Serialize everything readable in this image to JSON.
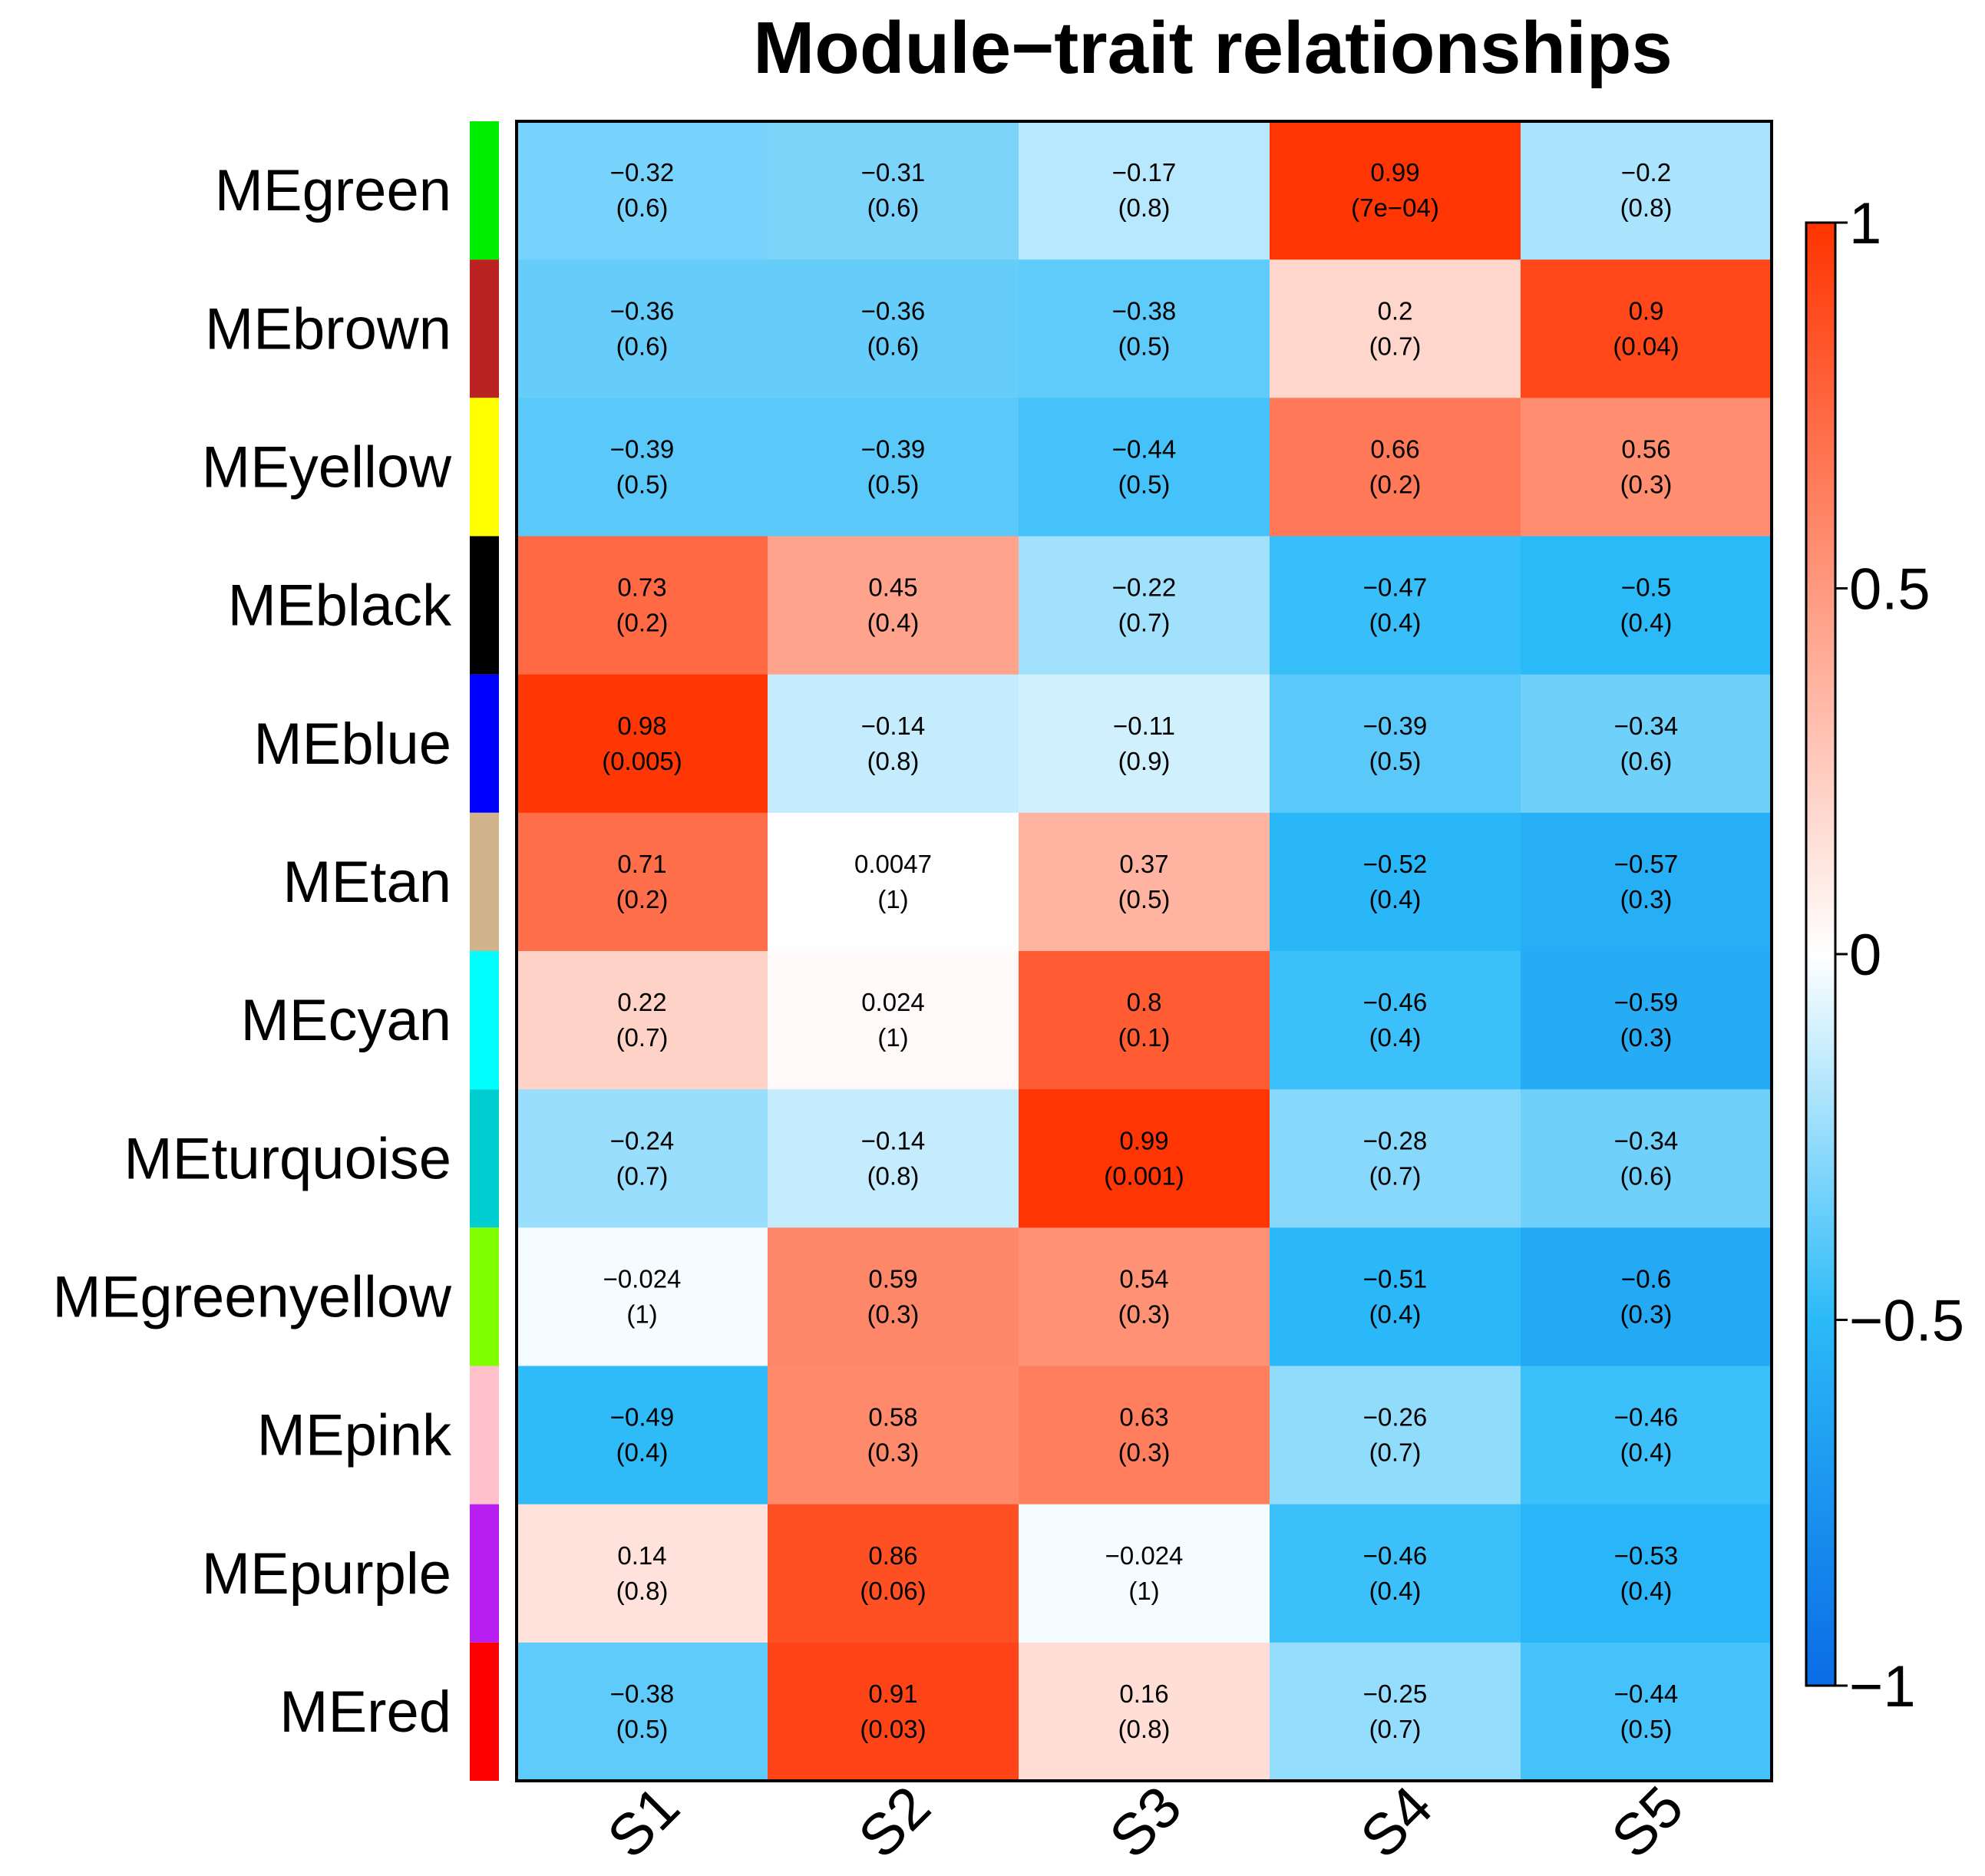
{
  "title": "Module−trait relationships",
  "chart_data": {
    "type": "heatmap",
    "title": "Module−trait relationships",
    "rows": [
      "MEgreen",
      "MEbrown",
      "MEyellow",
      "MEblack",
      "MEblue",
      "MEtan",
      "MEcyan",
      "MEturquoise",
      "MEgreenyellow",
      "MEpink",
      "MEpurple",
      "MEred"
    ],
    "row_colors": [
      "#00ee00",
      "#bb2222",
      "#ffff00",
      "#000000",
      "#0000ff",
      "#d2b48c",
      "#00ffff",
      "#00ced1",
      "#80ff00",
      "#ffc0cb",
      "#b91ef0",
      "#ff0000"
    ],
    "columns": [
      "S1",
      "S2",
      "S3",
      "S4",
      "S5"
    ],
    "values": [
      [
        -0.32,
        -0.31,
        -0.17,
        0.99,
        -0.2
      ],
      [
        -0.36,
        -0.36,
        -0.38,
        0.2,
        0.9
      ],
      [
        -0.39,
        -0.39,
        -0.44,
        0.66,
        0.56
      ],
      [
        0.73,
        0.45,
        -0.22,
        -0.47,
        -0.5
      ],
      [
        0.98,
        -0.14,
        -0.11,
        -0.39,
        -0.34
      ],
      [
        0.71,
        0.0047,
        0.37,
        -0.52,
        -0.57
      ],
      [
        0.22,
        0.024,
        0.8,
        -0.46,
        -0.59
      ],
      [
        -0.24,
        -0.14,
        0.99,
        -0.28,
        -0.34
      ],
      [
        -0.024,
        0.59,
        0.54,
        -0.51,
        -0.6
      ],
      [
        -0.49,
        0.58,
        0.63,
        -0.26,
        -0.46
      ],
      [
        0.14,
        0.86,
        -0.024,
        -0.46,
        -0.53
      ],
      [
        -0.38,
        0.91,
        0.16,
        -0.25,
        -0.44
      ]
    ],
    "value_labels": [
      [
        "−0.32",
        "−0.31",
        "−0.17",
        "0.99",
        "−0.2"
      ],
      [
        "−0.36",
        "−0.36",
        "−0.38",
        "0.2",
        "0.9"
      ],
      [
        "−0.39",
        "−0.39",
        "−0.44",
        "0.66",
        "0.56"
      ],
      [
        "0.73",
        "0.45",
        "−0.22",
        "−0.47",
        "−0.5"
      ],
      [
        "0.98",
        "−0.14",
        "−0.11",
        "−0.39",
        "−0.34"
      ],
      [
        "0.71",
        "0.0047",
        "0.37",
        "−0.52",
        "−0.57"
      ],
      [
        "0.22",
        "0.024",
        "0.8",
        "−0.46",
        "−0.59"
      ],
      [
        "−0.24",
        "−0.14",
        "0.99",
        "−0.28",
        "−0.34"
      ],
      [
        "−0.024",
        "0.59",
        "0.54",
        "−0.51",
        "−0.6"
      ],
      [
        "−0.49",
        "0.58",
        "0.63",
        "−0.26",
        "−0.46"
      ],
      [
        "0.14",
        "0.86",
        "−0.024",
        "−0.46",
        "−0.53"
      ],
      [
        "−0.38",
        "0.91",
        "0.16",
        "−0.25",
        "−0.44"
      ]
    ],
    "p_values": [
      [
        "(0.6)",
        "(0.6)",
        "(0.8)",
        "(7e−04)",
        "(0.8)"
      ],
      [
        "(0.6)",
        "(0.6)",
        "(0.5)",
        "(0.7)",
        "(0.04)"
      ],
      [
        "(0.5)",
        "(0.5)",
        "(0.5)",
        "(0.2)",
        "(0.3)"
      ],
      [
        "(0.2)",
        "(0.4)",
        "(0.7)",
        "(0.4)",
        "(0.4)"
      ],
      [
        "(0.005)",
        "(0.8)",
        "(0.9)",
        "(0.5)",
        "(0.6)"
      ],
      [
        "(0.2)",
        "(1)",
        "(0.5)",
        "(0.4)",
        "(0.3)"
      ],
      [
        "(0.7)",
        "(1)",
        "(0.1)",
        "(0.4)",
        "(0.3)"
      ],
      [
        "(0.7)",
        "(0.8)",
        "(0.001)",
        "(0.7)",
        "(0.6)"
      ],
      [
        "(1)",
        "(0.3)",
        "(0.3)",
        "(0.4)",
        "(0.3)"
      ],
      [
        "(0.4)",
        "(0.3)",
        "(0.3)",
        "(0.7)",
        "(0.4)"
      ],
      [
        "(0.8)",
        "(0.06)",
        "(1)",
        "(0.4)",
        "(0.4)"
      ],
      [
        "(0.5)",
        "(0.03)",
        "(0.8)",
        "(0.7)",
        "(0.5)"
      ]
    ],
    "color_scale": {
      "range": [
        -1,
        1
      ],
      "ticks": [
        1,
        0.5,
        0,
        -0.5,
        -1
      ],
      "tick_labels": [
        "1",
        "0.5",
        "0",
        "−0.5",
        "−1"
      ],
      "colors": {
        "neg": "#0a6ce6",
        "mid_neg": "#2bbaf8",
        "zero": "#ffffff",
        "pos": "#ff3300"
      }
    },
    "xlabel": "",
    "ylabel": ""
  }
}
